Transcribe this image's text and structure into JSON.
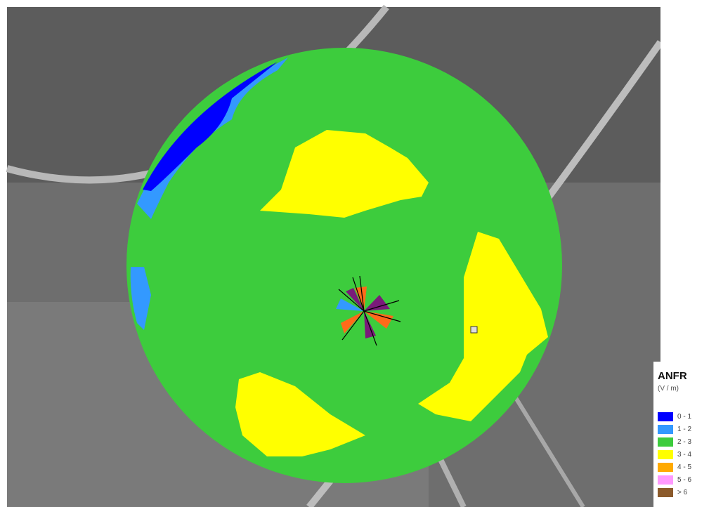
{
  "legend": {
    "title": "ANFR",
    "unit": "(V / m)",
    "items": [
      {
        "label": "0 - 1",
        "color": "#0000ff"
      },
      {
        "label": "1 - 2",
        "color": "#3399ff"
      },
      {
        "label": "2 - 3",
        "color": "#3dcc3d"
      },
      {
        "label": "3 - 4",
        "color": "#ffff00"
      },
      {
        "label": "4 - 5",
        "color": "#ffaa00"
      },
      {
        "label": "5 - 6",
        "color": "#ff99ff"
      },
      {
        "label": "> 6",
        "color": "#8b5a2b"
      }
    ]
  }
}
